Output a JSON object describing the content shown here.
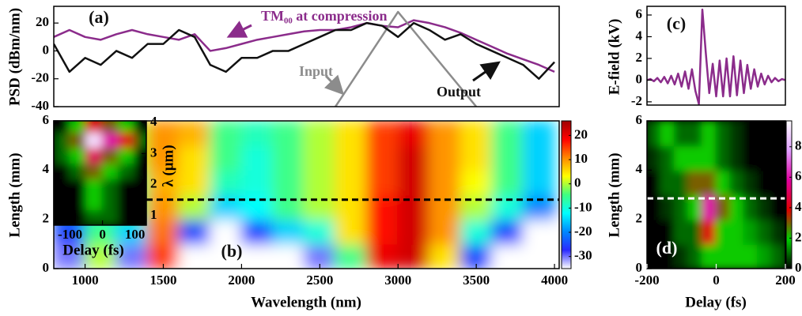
{
  "chart_data": [
    {
      "type": "line",
      "label": "(a)",
      "ylabel": "PSD (dBm/nm)",
      "xlim": [
        800,
        4030
      ],
      "ylim": [
        -40,
        32
      ],
      "yticks": [
        -40,
        -20,
        0,
        20
      ],
      "series": [
        {
          "name": "TM₀₀ at compression",
          "color": "#8b2c8b",
          "x": [
            800,
            900,
            1000,
            1100,
            1200,
            1300,
            1400,
            1500,
            1600,
            1700,
            1800,
            1900,
            2000,
            2100,
            2200,
            2300,
            2400,
            2500,
            2600,
            2700,
            2800,
            2900,
            3000,
            3100,
            3200,
            3300,
            3400,
            3500,
            3600,
            3700,
            3800,
            3900,
            4000
          ],
          "values": [
            10,
            15,
            10,
            8,
            12,
            15,
            12,
            10,
            8,
            12,
            0,
            2,
            5,
            8,
            10,
            12,
            14,
            15,
            15,
            17,
            20,
            18,
            17,
            22,
            20,
            17,
            13,
            8,
            3,
            -2,
            -6,
            -10,
            -15
          ]
        },
        {
          "name": "Input",
          "color": "#8c8c8c",
          "x": [
            2600,
            3000,
            3500
          ],
          "values": [
            -40,
            28,
            -40
          ]
        },
        {
          "name": "Output",
          "color": "#111111",
          "x": [
            800,
            900,
            1000,
            1100,
            1200,
            1300,
            1400,
            1500,
            1600,
            1700,
            1800,
            1900,
            2000,
            2100,
            2200,
            2300,
            2400,
            2500,
            2600,
            2700,
            2800,
            2900,
            3000,
            3100,
            3200,
            3300,
            3400,
            3500,
            3600,
            3700,
            3800,
            3900,
            4000
          ],
          "values": [
            5,
            -15,
            -5,
            -10,
            0,
            -5,
            5,
            5,
            15,
            10,
            -10,
            -15,
            -5,
            -5,
            0,
            0,
            5,
            10,
            15,
            15,
            20,
            18,
            10,
            20,
            15,
            8,
            12,
            5,
            0,
            -5,
            -10,
            -20,
            -8
          ]
        }
      ]
    },
    {
      "type": "heatmap",
      "label": "(b)",
      "xlabel": "Wavelength (nm)",
      "ylabel": "Length (mm)",
      "xlim": [
        800,
        4030
      ],
      "ylim": [
        0,
        6
      ],
      "xticks": [
        1000,
        1500,
        2000,
        2500,
        3000,
        3500,
        4000
      ],
      "yticks": [
        0,
        2,
        4,
        6
      ],
      "x": [
        900,
        1100,
        1300,
        1500,
        1700,
        1900,
        2100,
        2300,
        2500,
        2700,
        2900,
        3100,
        3300,
        3500,
        3700,
        3900
      ],
      "y": [
        0.5,
        1.5,
        2.5,
        3.5,
        4.5,
        5.5
      ],
      "z": [
        [
          -30,
          0,
          -30,
          15,
          -35,
          -35,
          -35,
          -35,
          -30,
          -5,
          20,
          22,
          5,
          -25,
          -35,
          -35
        ],
        [
          -25,
          -5,
          -15,
          12,
          -25,
          -35,
          -25,
          -15,
          -10,
          5,
          18,
          22,
          10,
          -10,
          -25,
          -35
        ],
        [
          -20,
          -10,
          -5,
          10,
          0,
          -15,
          -12,
          -5,
          0,
          5,
          18,
          22,
          10,
          0,
          -10,
          -20
        ],
        [
          -15,
          -10,
          -5,
          8,
          5,
          -8,
          -10,
          -5,
          0,
          5,
          15,
          22,
          10,
          3,
          -5,
          -15
        ],
        [
          -10,
          -5,
          0,
          10,
          5,
          -5,
          -10,
          -5,
          0,
          5,
          15,
          22,
          10,
          5,
          -5,
          -15
        ],
        [
          -10,
          -5,
          0,
          10,
          8,
          -5,
          -8,
          -5,
          0,
          5,
          15,
          20,
          10,
          5,
          -5,
          -15
        ]
      ],
      "zlim": [
        -35,
        26
      ],
      "zticks": [
        -30,
        -20,
        -10,
        0,
        10,
        20
      ],
      "colormap": [
        "#ffffff",
        "#2a2aff",
        "#0088ff",
        "#00ffff",
        "#40ff80",
        "#ffff00",
        "#ff8800",
        "#ff0000",
        "#a00000"
      ],
      "hline": 2.8,
      "hline_color": "#000000"
    },
    {
      "type": "heatmap",
      "xlabel": "Delay (fs)",
      "ylabel": "λ (μm)",
      "xlim": [
        -150,
        135
      ],
      "ylim": [
        0.7,
        4.05
      ],
      "xticks": [
        -100,
        0,
        100
      ],
      "yticks": [
        1,
        2,
        3,
        4
      ],
      "x": [
        -125,
        -75,
        -25,
        25,
        75,
        125
      ],
      "y": [
        0.95,
        1.45,
        1.95,
        2.45,
        2.95,
        3.45,
        3.95
      ],
      "z": [
        [
          0,
          0,
          1,
          1,
          0,
          0
        ],
        [
          0,
          0,
          2,
          1,
          0,
          0
        ],
        [
          0,
          0,
          2,
          1,
          0,
          0
        ],
        [
          0,
          1,
          3,
          2,
          1,
          0
        ],
        [
          1,
          2,
          5,
          3,
          2,
          0
        ],
        [
          1,
          3,
          9,
          6,
          4,
          1
        ],
        [
          0,
          2,
          4,
          3,
          2,
          0
        ]
      ]
    },
    {
      "type": "line",
      "label": "(c)",
      "ylabel": "E-field (kV)",
      "xlim": [
        -200,
        200
      ],
      "ylim": [
        -2.3,
        6.8
      ],
      "yticks": [
        -2,
        0,
        2,
        4,
        6
      ],
      "series": [
        {
          "color": "#8b2c8b",
          "x": [
            -200,
            -190,
            -180,
            -170,
            -160,
            -150,
            -140,
            -130,
            -120,
            -110,
            -100,
            -90,
            -80,
            -70,
            -60,
            -50,
            -40,
            -30,
            -20,
            -10,
            0,
            10,
            20,
            30,
            40,
            50,
            60,
            70,
            80,
            90,
            100,
            110,
            120,
            130,
            140,
            150,
            160,
            170,
            180,
            190,
            200
          ],
          "values": [
            0,
            0.1,
            -0.1,
            0.2,
            -0.2,
            0.3,
            -0.3,
            0.4,
            -0.4,
            0.6,
            -0.6,
            0.8,
            -0.8,
            1,
            -1,
            -2.2,
            6.5,
            2.5,
            -1.2,
            1.5,
            -1.5,
            1.8,
            -1.5,
            2,
            -1.5,
            2.2,
            -1.4,
            1.8,
            -1.2,
            1.4,
            -0.8,
            1,
            -0.6,
            0.6,
            -0.4,
            0.4,
            -0.2,
            0.2,
            -0.1,
            0.1,
            0
          ]
        }
      ]
    },
    {
      "type": "heatmap",
      "label": "(d)",
      "xlabel": "Delay (fs)",
      "ylabel": "Length (mm)",
      "xlim": [
        -200,
        200
      ],
      "ylim": [
        0,
        6
      ],
      "xticks": [
        -200,
        0,
        200
      ],
      "yticks": [
        0,
        2,
        4,
        6
      ],
      "x": [
        -180,
        -140,
        -100,
        -60,
        -20,
        20,
        60,
        100,
        140,
        180
      ],
      "y": [
        0.5,
        1.5,
        2.5,
        3.5,
        4.5,
        5.5
      ],
      "z": [
        [
          0,
          0,
          0.5,
          1,
          2,
          2,
          2,
          2,
          1.5,
          1
        ],
        [
          0,
          0,
          1,
          1,
          4,
          2,
          2,
          1.5,
          1,
          0.5
        ],
        [
          0,
          0.5,
          1,
          2,
          6,
          3,
          2,
          1,
          0.5,
          0
        ],
        [
          0,
          1,
          1,
          3,
          3,
          2,
          1,
          0.5,
          0,
          0
        ],
        [
          0.5,
          1,
          2,
          2,
          2,
          1,
          0.5,
          0,
          0,
          0
        ],
        [
          1,
          2,
          1,
          1,
          2,
          1,
          0.5,
          0,
          0,
          0
        ]
      ],
      "zlim": [
        0,
        9.7
      ],
      "zticks": [
        0,
        2,
        4,
        6,
        8
      ],
      "colormap": [
        "#000000",
        "#00d000",
        "#e00000",
        "#e000a0",
        "#e0a0ff",
        "#ffffff"
      ],
      "hline": 2.85,
      "hline_color": "#ffffff"
    }
  ]
}
